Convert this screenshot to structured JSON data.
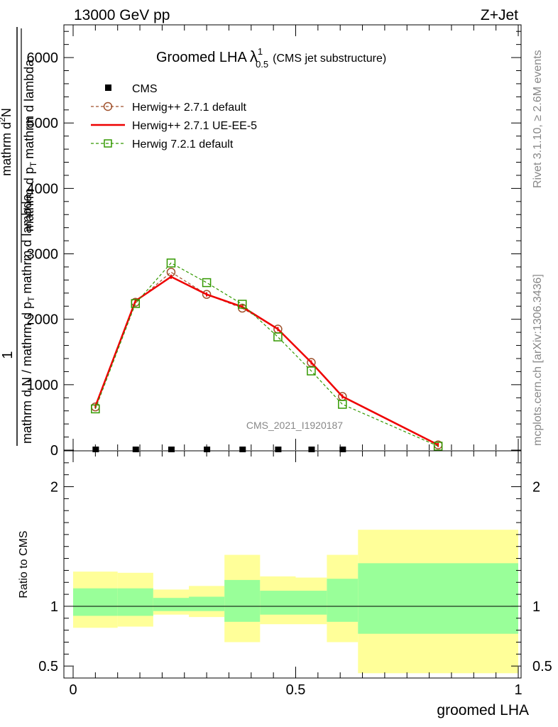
{
  "header": {
    "energy": "13000 GeV pp",
    "process": "Z+Jet"
  },
  "side_labels": {
    "rivet": "Rivet 3.1.10, ≥ 2.6M events",
    "mcplots": "mcplots.cern.ch [arXiv:1306.3436]"
  },
  "chart_data": [
    {
      "type": "line",
      "title": "Groomed LHA",
      "title_symbol": "λ",
      "title_sup": "1",
      "title_sub": "0.5",
      "title_note": "(CMS jet substructure)",
      "ylabel_num": "1",
      "ylabel_den1": "mathrm d N / mathrm d p",
      "ylabel_den1_sub": "T",
      "ylabel_den2": "mathrm d lambda",
      "ylabel_frac_num": "mathrm d",
      "ylabel_frac_sup": "2",
      "ylabel_frac_N": "N",
      "ylabel_frac_den": "mathrm d p",
      "ylabel_frac_den_sub": "T",
      "ylabel_frac_den2": "mathrm d lambda",
      "xlim": [
        0,
        1
      ],
      "ylim": [
        0,
        6500
      ],
      "yticks": [
        {
          "v": 0,
          "label": "0"
        },
        {
          "v": 1000,
          "label": "1000"
        },
        {
          "v": 2000,
          "label": "2000"
        },
        {
          "v": 3000,
          "label": "3000"
        },
        {
          "v": 4000,
          "label": "4000"
        },
        {
          "v": 5000,
          "label": "5000"
        },
        {
          "v": 6000,
          "label": "6000"
        }
      ],
      "watermark": "CMS_2021_I1920187",
      "legend": [
        {
          "key": "cms",
          "label": "CMS"
        },
        {
          "key": "h271",
          "label": "Herwig++ 2.7.1 default"
        },
        {
          "key": "h271ue",
          "label": "Herwig++ 2.7.1 UE-EE-5"
        },
        {
          "key": "h721",
          "label": "Herwig 7.2.1 default"
        }
      ],
      "series": [
        {
          "key": "cms",
          "name": "CMS",
          "color": "#000000",
          "x": [
            0.05,
            0.14,
            0.22,
            0.3,
            0.38,
            0.46,
            0.535,
            0.605
          ],
          "y": [
            0,
            0,
            0,
            0,
            0,
            0,
            0,
            0
          ]
        },
        {
          "key": "h271",
          "name": "Herwig++ 2.7.1 default",
          "color": "#a0522d",
          "x": [
            0.05,
            0.14,
            0.22,
            0.3,
            0.38,
            0.46,
            0.535,
            0.605,
            0.82
          ],
          "y": [
            660,
            2260,
            2720,
            2380,
            2170,
            1850,
            1340,
            820,
            80
          ]
        },
        {
          "key": "h271ue",
          "name": "Herwig++ 2.7.1 UE-EE-5",
          "color": "#ee0000",
          "x": [
            0.05,
            0.14,
            0.22,
            0.3,
            0.38,
            0.46,
            0.535,
            0.605,
            0.82
          ],
          "y": [
            670,
            2280,
            2650,
            2380,
            2190,
            1850,
            1340,
            820,
            80
          ]
        },
        {
          "key": "h721",
          "name": "Herwig 7.2.1 default",
          "color": "#339900",
          "x": [
            0.05,
            0.14,
            0.22,
            0.3,
            0.38,
            0.46,
            0.535,
            0.605,
            0.82
          ],
          "y": [
            630,
            2240,
            2860,
            2560,
            2230,
            1730,
            1210,
            700,
            60
          ]
        }
      ]
    },
    {
      "type": "area",
      "ylabel": "Ratio to CMS",
      "xlabel": "groomed LHA",
      "xlim": [
        0,
        1
      ],
      "ylim": [
        0.4,
        2.3
      ],
      "yticks": [
        {
          "v": 0.5,
          "label": "0.5"
        },
        {
          "v": 1,
          "label": "1"
        },
        {
          "v": 2,
          "label": "2"
        }
      ],
      "xticks": [
        {
          "v": 0,
          "label": "0"
        },
        {
          "v": 0.5,
          "label": "0.5"
        },
        {
          "v": 1,
          "label": "1"
        }
      ],
      "band_colors": {
        "outer": "#ffff99",
        "inner": "#99ff99"
      },
      "bins": [
        {
          "lo": 0.0,
          "hi": 0.1,
          "outer": [
            0.82,
            1.29
          ],
          "inner": [
            0.92,
            1.15
          ]
        },
        {
          "lo": 0.1,
          "hi": 0.18,
          "outer": [
            0.83,
            1.28
          ],
          "inner": [
            0.92,
            1.15
          ]
        },
        {
          "lo": 0.18,
          "hi": 0.26,
          "outer": [
            0.93,
            1.14
          ],
          "inner": [
            0.96,
            1.07
          ]
        },
        {
          "lo": 0.26,
          "hi": 0.34,
          "outer": [
            0.91,
            1.17
          ],
          "inner": [
            0.96,
            1.08
          ]
        },
        {
          "lo": 0.34,
          "hi": 0.42,
          "outer": [
            0.7,
            1.43
          ],
          "inner": [
            0.87,
            1.22
          ]
        },
        {
          "lo": 0.42,
          "hi": 0.5,
          "outer": [
            0.85,
            1.25
          ],
          "inner": [
            0.93,
            1.13
          ]
        },
        {
          "lo": 0.5,
          "hi": 0.57,
          "outer": [
            0.85,
            1.24
          ],
          "inner": [
            0.93,
            1.13
          ]
        },
        {
          "lo": 0.57,
          "hi": 0.64,
          "outer": [
            0.7,
            1.43
          ],
          "inner": [
            0.87,
            1.23
          ]
        },
        {
          "lo": 0.64,
          "hi": 1.0,
          "outer": [
            0.44,
            1.64
          ],
          "inner": [
            0.77,
            1.36
          ]
        }
      ]
    }
  ]
}
